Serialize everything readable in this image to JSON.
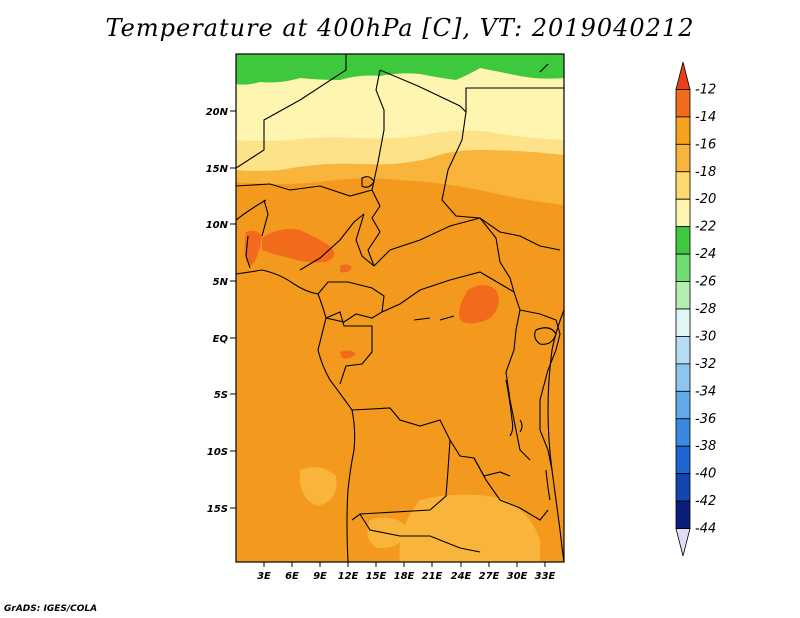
{
  "title": "Temperature at 400hPa [C], VT: 2019040212",
  "credit": "GrADS: IGES/COLA",
  "map": {
    "lon_ticks": [
      "3E",
      "6E",
      "9E",
      "12E",
      "15E",
      "18E",
      "21E",
      "24E",
      "27E",
      "30E",
      "33E"
    ],
    "lat_ticks": [
      "20N",
      "15N",
      "10N",
      "5N",
      "EQ",
      "5S",
      "10S",
      "15S"
    ],
    "colors": {
      "green": "#3ec83e",
      "pale_yellow": "#fdf5b0",
      "light_yellow": "#fde28a",
      "light_orange": "#f9b43b",
      "orange": "#f39a1e",
      "dark_orange": "#f26a1b"
    }
  },
  "colorbar": {
    "labels": [
      "-12",
      "-14",
      "-16",
      "-18",
      "-20",
      "-22",
      "-24",
      "-26",
      "-28",
      "-30",
      "-32",
      "-34",
      "-36",
      "-38",
      "-40",
      "-42",
      "-44"
    ],
    "colors": [
      "#e8401c",
      "#f26a1b",
      "#f7a21d",
      "#f9b43b",
      "#fdd870",
      "#fdf5b0",
      "#3ec83e",
      "#6fdd6f",
      "#b5eeb1",
      "#e2f7f5",
      "#b6dcf3",
      "#8ec5ee",
      "#63aaea",
      "#3a88e2",
      "#1f66d3",
      "#1346b0",
      "#0b1e7a",
      "#dedcf6"
    ]
  }
}
